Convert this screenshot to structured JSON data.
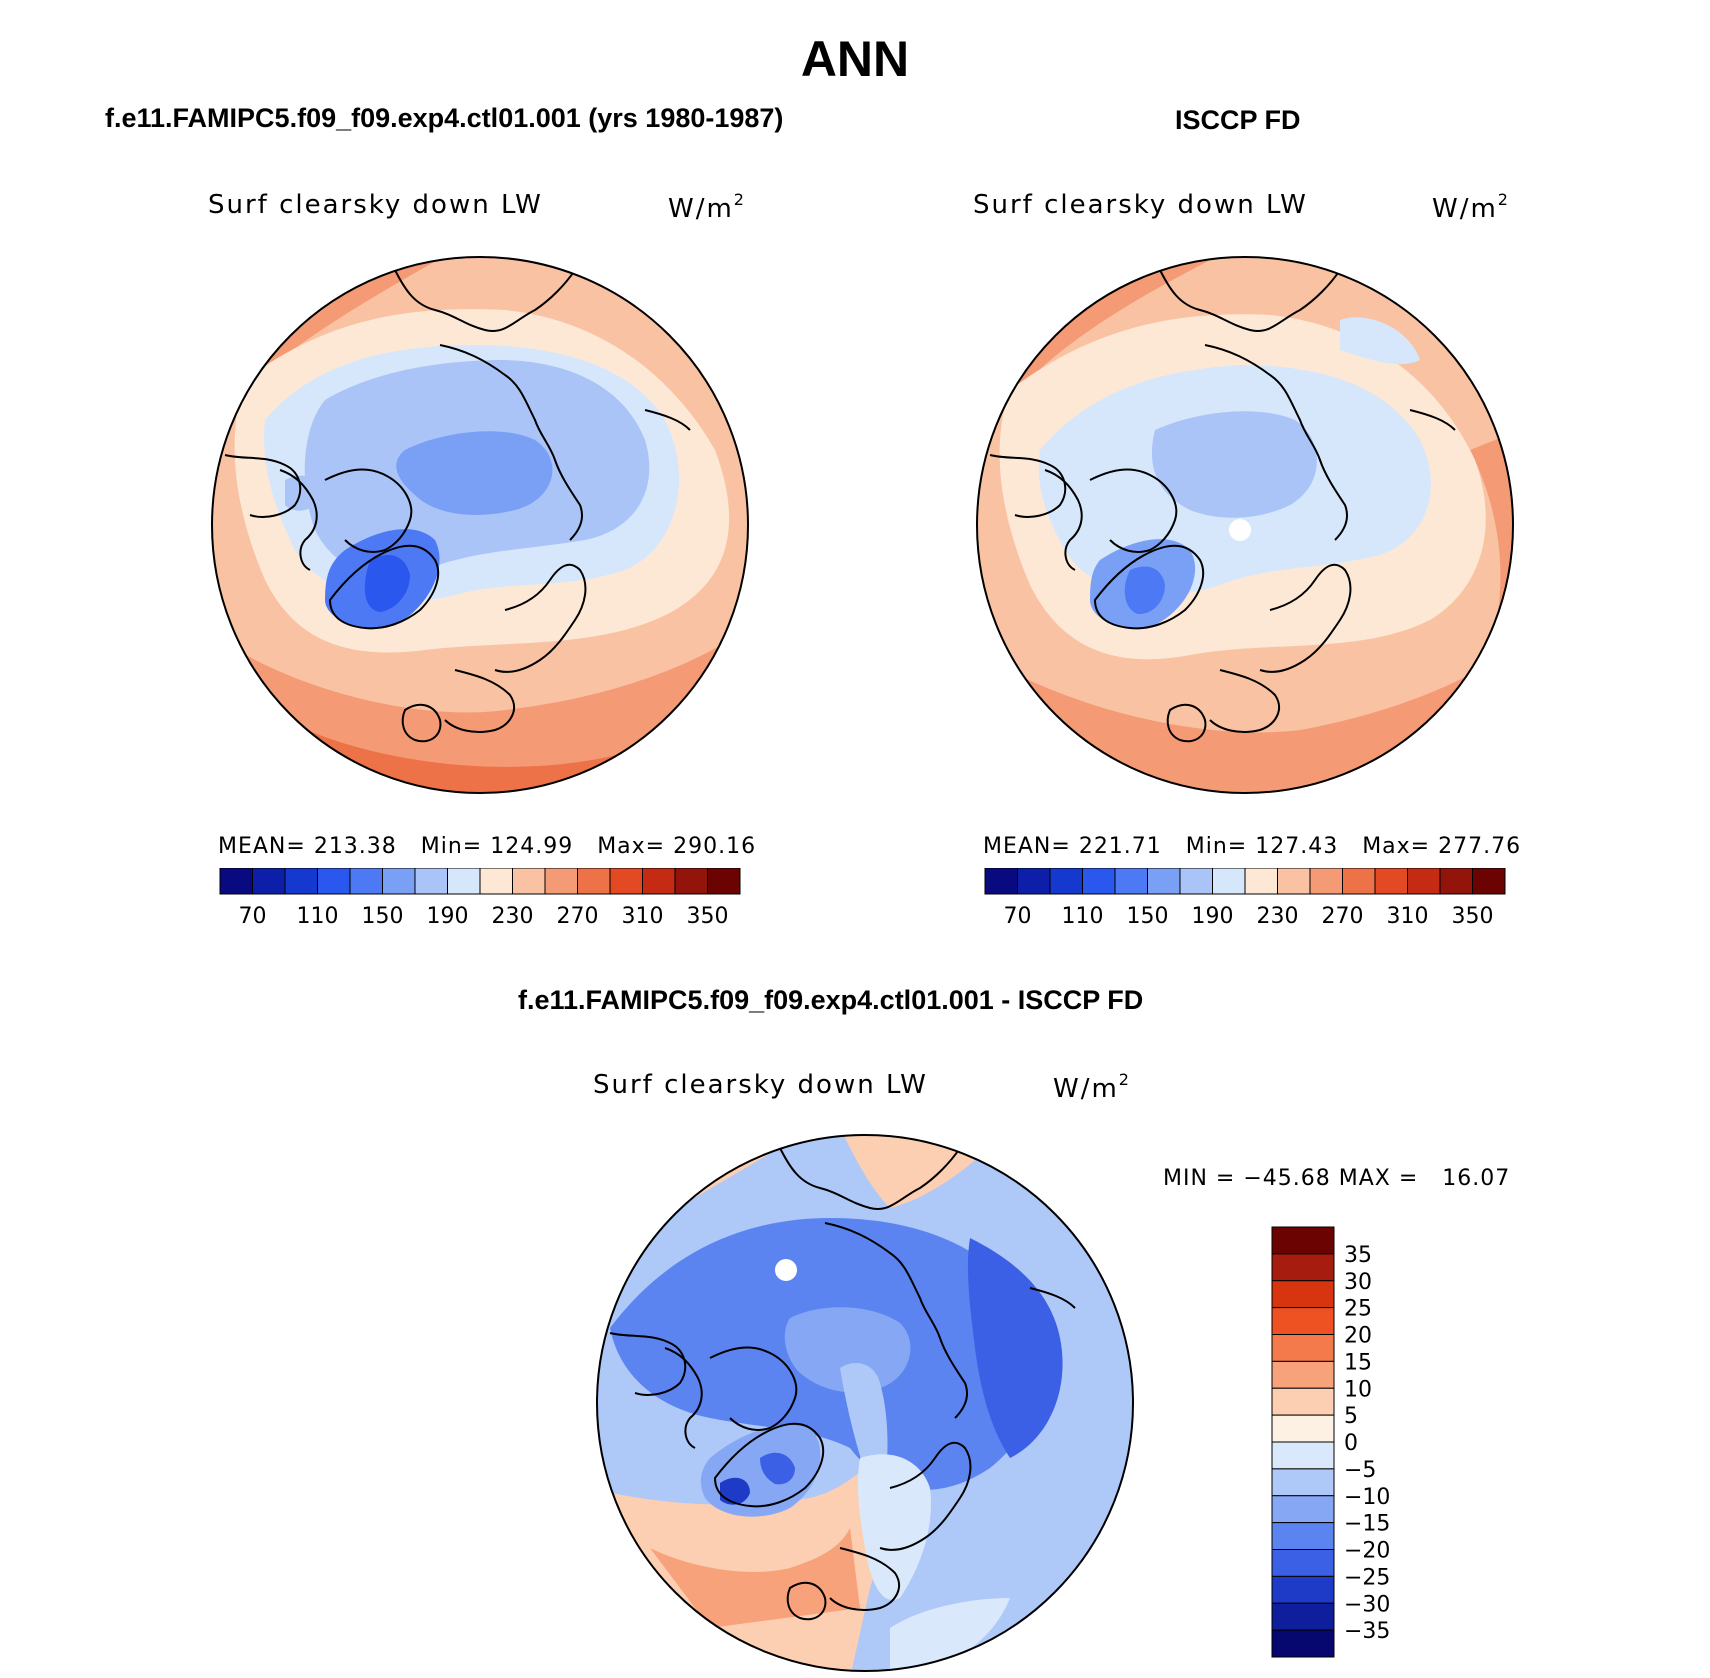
{
  "title": "ANN",
  "charts": {
    "model": {
      "panel_title": "f.e11.FAMIPC5.f09_f09.exp4.ctl01.001 (yrs 1980-1987)",
      "field": "Surf clearsky down LW",
      "units_base": "W/m",
      "units_exp": "2",
      "stats": "MEAN= 213.38   Min= 124.99   Max= 290.16"
    },
    "obs": {
      "panel_title": "ISCCP FD",
      "field": "Surf clearsky down LW",
      "units_base": "W/m",
      "units_exp": "2",
      "stats": "MEAN= 221.71   Min= 127.43   Max= 277.76"
    },
    "diff": {
      "panel_title": "f.e11.FAMIPC5.f09_f09.exp4.ctl01.001 - ISCCP FD",
      "field": "Surf clearsky down LW",
      "units_base": "W/m",
      "units_exp": "2",
      "stats": "MIN = −45.68 MAX =   16.07"
    }
  },
  "chart_data": [
    {
      "type": "heatmap",
      "projection": "north-polar-stereographic",
      "title": "f.e11.FAMIPC5.f09_f09.exp4.ctl01.001 (yrs 1980-1987)",
      "variable": "Surf clearsky down LW",
      "units": "W/m2",
      "mean": 213.38,
      "min": 124.99,
      "max": 290.16,
      "colorbar": {
        "orientation": "horizontal",
        "tick_labels": [
          "70",
          "110",
          "150",
          "190",
          "230",
          "270",
          "310",
          "350"
        ],
        "colors": [
          "#0a0a80",
          "#0d1fa8",
          "#1538cf",
          "#2a57ee",
          "#4d7af4",
          "#7aa0f6",
          "#aac4f7",
          "#d6e7fb",
          "#fde8d6",
          "#f9c2a3",
          "#f49b75",
          "#ee7247",
          "#e34a24",
          "#c52b13",
          "#93140b",
          "#6b0303"
        ]
      }
    },
    {
      "type": "heatmap",
      "projection": "north-polar-stereographic",
      "title": "ISCCP FD",
      "variable": "Surf clearsky down LW",
      "units": "W/m2",
      "mean": 221.71,
      "min": 127.43,
      "max": 277.76,
      "colorbar": {
        "orientation": "horizontal",
        "tick_labels": [
          "70",
          "110",
          "150",
          "190",
          "230",
          "270",
          "310",
          "350"
        ],
        "colors": [
          "#0a0a80",
          "#0d1fa8",
          "#1538cf",
          "#2a57ee",
          "#4d7af4",
          "#7aa0f6",
          "#aac4f7",
          "#d6e7fb",
          "#fde8d6",
          "#f9c2a3",
          "#f49b75",
          "#ee7247",
          "#e34a24",
          "#c52b13",
          "#93140b",
          "#6b0303"
        ]
      }
    },
    {
      "type": "heatmap",
      "projection": "north-polar-stereographic",
      "title": "f.e11.FAMIPC5.f09_f09.exp4.ctl01.001 - ISCCP FD",
      "variable": "Surf clearsky down LW",
      "units": "W/m2",
      "min": -45.68,
      "max": 16.07,
      "colorbar": {
        "orientation": "vertical",
        "tick_labels": [
          "35",
          "30",
          "25",
          "20",
          "15",
          "10",
          "5",
          "0",
          "−5",
          "−10",
          "−15",
          "−20",
          "−25",
          "−30",
          "−35"
        ],
        "colors": [
          "#6b0303",
          "#a61c0e",
          "#d7350f",
          "#ee5223",
          "#f47a4c",
          "#f8a27c",
          "#fccfb3",
          "#fdf1e4",
          "#d9e9fb",
          "#aec8f7",
          "#86a8f4",
          "#5b84f1",
          "#3b60e6",
          "#1d3bc7",
          "#0e1e9d",
          "#06086f"
        ]
      }
    }
  ],
  "colors": {
    "warm_light": "#fde8d6",
    "warm_mid": "#f49b75",
    "cool_light": "#d6e7fb",
    "cool_mid": "#aac4f7"
  }
}
